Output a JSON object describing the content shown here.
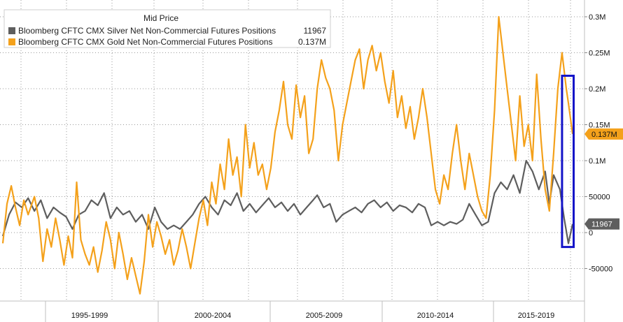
{
  "chart_data": {
    "type": "line",
    "legend": {
      "title": "Mid Price",
      "placement": "top-left",
      "entries": [
        {
          "series": 0,
          "label": "Bloomberg CFTC CMX Silver Net Non-Commercial Futures Positions",
          "value": "11967"
        },
        {
          "series": 1,
          "label": "Bloomberg CFTC CMX Gold Net Non-Commercial Futures Positions",
          "value": "0.137M"
        }
      ]
    },
    "x_ticks": [
      "1995-1999",
      "2000-2004",
      "2005-2009",
      "2010-2014",
      "2015-2019"
    ],
    "y_ticks": [
      {
        "value": -50000,
        "label": "-50000"
      },
      {
        "value": 0,
        "label": "0"
      },
      {
        "value": 50000,
        "label": "50000"
      },
      {
        "value": 100000,
        "label": "0.1M"
      },
      {
        "value": 150000,
        "label": "0.15M"
      },
      {
        "value": 200000,
        "label": "0.2M"
      },
      {
        "value": 250000,
        "label": "0.25M"
      },
      {
        "value": 300000,
        "label": "0.3M"
      }
    ],
    "ylim": [
      -95000,
      320000
    ],
    "xlim": [
      1993.0,
      2020.0
    ],
    "grid": true,
    "series": [
      {
        "color": "#5e5e5e",
        "last_label": "11967",
        "points": [
          [
            1993.0,
            -5000
          ],
          [
            1993.3,
            25000
          ],
          [
            1993.6,
            42000
          ],
          [
            1993.9,
            35000
          ],
          [
            1994.2,
            48000
          ],
          [
            1994.5,
            30000
          ],
          [
            1994.8,
            45000
          ],
          [
            1995.1,
            20000
          ],
          [
            1995.4,
            35000
          ],
          [
            1995.7,
            28000
          ],
          [
            1996.0,
            22000
          ],
          [
            1996.3,
            5000
          ],
          [
            1996.6,
            25000
          ],
          [
            1996.9,
            30000
          ],
          [
            1997.2,
            45000
          ],
          [
            1997.5,
            38000
          ],
          [
            1997.8,
            55000
          ],
          [
            1998.1,
            20000
          ],
          [
            1998.4,
            35000
          ],
          [
            1998.7,
            25000
          ],
          [
            1999.0,
            30000
          ],
          [
            1999.3,
            15000
          ],
          [
            1999.6,
            25000
          ],
          [
            1999.9,
            5000
          ],
          [
            2000.2,
            35000
          ],
          [
            2000.5,
            15000
          ],
          [
            2000.8,
            5000
          ],
          [
            2001.1,
            10000
          ],
          [
            2001.4,
            5000
          ],
          [
            2001.7,
            15000
          ],
          [
            2002.0,
            25000
          ],
          [
            2002.3,
            40000
          ],
          [
            2002.6,
            50000
          ],
          [
            2002.9,
            35000
          ],
          [
            2003.2,
            25000
          ],
          [
            2003.5,
            45000
          ],
          [
            2003.8,
            38000
          ],
          [
            2004.1,
            55000
          ],
          [
            2004.4,
            30000
          ],
          [
            2004.7,
            40000
          ],
          [
            2005.0,
            28000
          ],
          [
            2005.3,
            38000
          ],
          [
            2005.6,
            48000
          ],
          [
            2005.9,
            35000
          ],
          [
            2006.2,
            42000
          ],
          [
            2006.5,
            30000
          ],
          [
            2006.8,
            40000
          ],
          [
            2007.1,
            25000
          ],
          [
            2007.4,
            35000
          ],
          [
            2007.7,
            45000
          ],
          [
            2007.9,
            52000
          ],
          [
            2008.2,
            35000
          ],
          [
            2008.5,
            40000
          ],
          [
            2008.8,
            15000
          ],
          [
            2009.1,
            25000
          ],
          [
            2009.4,
            30000
          ],
          [
            2009.7,
            35000
          ],
          [
            2010.0,
            28000
          ],
          [
            2010.3,
            40000
          ],
          [
            2010.6,
            45000
          ],
          [
            2010.9,
            35000
          ],
          [
            2011.2,
            42000
          ],
          [
            2011.5,
            30000
          ],
          [
            2011.8,
            38000
          ],
          [
            2012.1,
            35000
          ],
          [
            2012.4,
            28000
          ],
          [
            2012.7,
            40000
          ],
          [
            2013.0,
            35000
          ],
          [
            2013.3,
            10000
          ],
          [
            2013.6,
            15000
          ],
          [
            2013.9,
            10000
          ],
          [
            2014.2,
            15000
          ],
          [
            2014.5,
            12000
          ],
          [
            2014.8,
            18000
          ],
          [
            2015.1,
            40000
          ],
          [
            2015.4,
            25000
          ],
          [
            2015.7,
            10000
          ],
          [
            2016.0,
            15000
          ],
          [
            2016.3,
            55000
          ],
          [
            2016.6,
            70000
          ],
          [
            2016.9,
            60000
          ],
          [
            2017.2,
            80000
          ],
          [
            2017.5,
            55000
          ],
          [
            2017.8,
            100000
          ],
          [
            2018.1,
            85000
          ],
          [
            2018.4,
            60000
          ],
          [
            2018.7,
            85000
          ],
          [
            2018.9,
            40000
          ],
          [
            2019.1,
            80000
          ],
          [
            2019.4,
            60000
          ],
          [
            2019.6,
            20000
          ],
          [
            2019.8,
            -15000
          ],
          [
            2020.0,
            11967
          ]
        ]
      },
      {
        "color": "#f4a11b",
        "last_label": "0.137M",
        "points": [
          [
            1993.0,
            -15000
          ],
          [
            1993.2,
            40000
          ],
          [
            1993.4,
            65000
          ],
          [
            1993.6,
            35000
          ],
          [
            1993.8,
            10000
          ],
          [
            1994.0,
            45000
          ],
          [
            1994.2,
            25000
          ],
          [
            1994.5,
            50000
          ],
          [
            1994.7,
            20000
          ],
          [
            1994.9,
            -40000
          ],
          [
            1995.1,
            5000
          ],
          [
            1995.3,
            -20000
          ],
          [
            1995.5,
            20000
          ],
          [
            1995.7,
            -10000
          ],
          [
            1995.9,
            -45000
          ],
          [
            1996.1,
            -5000
          ],
          [
            1996.3,
            -35000
          ],
          [
            1996.5,
            70000
          ],
          [
            1996.7,
            -10000
          ],
          [
            1996.9,
            -30000
          ],
          [
            1997.1,
            -45000
          ],
          [
            1997.3,
            -20000
          ],
          [
            1997.5,
            -55000
          ],
          [
            1997.7,
            -25000
          ],
          [
            1997.9,
            15000
          ],
          [
            1998.1,
            -10000
          ],
          [
            1998.3,
            -50000
          ],
          [
            1998.5,
            0
          ],
          [
            1998.7,
            -30000
          ],
          [
            1998.9,
            -65000
          ],
          [
            1999.1,
            -35000
          ],
          [
            1999.3,
            -60000
          ],
          [
            1999.5,
            -85000
          ],
          [
            1999.7,
            -40000
          ],
          [
            1999.9,
            25000
          ],
          [
            2000.1,
            -20000
          ],
          [
            2000.3,
            15000
          ],
          [
            2000.5,
            -5000
          ],
          [
            2000.7,
            -30000
          ],
          [
            2000.9,
            -10000
          ],
          [
            2001.1,
            -45000
          ],
          [
            2001.3,
            -25000
          ],
          [
            2001.5,
            5000
          ],
          [
            2001.7,
            -20000
          ],
          [
            2001.9,
            -50000
          ],
          [
            2002.1,
            -15000
          ],
          [
            2002.3,
            20000
          ],
          [
            2002.5,
            45000
          ],
          [
            2002.7,
            10000
          ],
          [
            2002.9,
            70000
          ],
          [
            2003.1,
            40000
          ],
          [
            2003.3,
            95000
          ],
          [
            2003.5,
            60000
          ],
          [
            2003.7,
            130000
          ],
          [
            2003.9,
            80000
          ],
          [
            2004.1,
            105000
          ],
          [
            2004.3,
            50000
          ],
          [
            2004.5,
            150000
          ],
          [
            2004.7,
            90000
          ],
          [
            2004.9,
            125000
          ],
          [
            2005.1,
            80000
          ],
          [
            2005.3,
            95000
          ],
          [
            2005.5,
            60000
          ],
          [
            2005.7,
            90000
          ],
          [
            2005.9,
            140000
          ],
          [
            2006.1,
            170000
          ],
          [
            2006.3,
            210000
          ],
          [
            2006.5,
            150000
          ],
          [
            2006.7,
            130000
          ],
          [
            2006.9,
            205000
          ],
          [
            2007.1,
            160000
          ],
          [
            2007.3,
            190000
          ],
          [
            2007.5,
            110000
          ],
          [
            2007.7,
            130000
          ],
          [
            2007.9,
            200000
          ],
          [
            2008.1,
            240000
          ],
          [
            2008.3,
            215000
          ],
          [
            2008.5,
            200000
          ],
          [
            2008.7,
            170000
          ],
          [
            2008.9,
            100000
          ],
          [
            2009.1,
            150000
          ],
          [
            2009.3,
            180000
          ],
          [
            2009.5,
            210000
          ],
          [
            2009.7,
            240000
          ],
          [
            2009.9,
            255000
          ],
          [
            2010.1,
            200000
          ],
          [
            2010.3,
            240000
          ],
          [
            2010.5,
            260000
          ],
          [
            2010.7,
            225000
          ],
          [
            2010.9,
            250000
          ],
          [
            2011.1,
            210000
          ],
          [
            2011.3,
            180000
          ],
          [
            2011.5,
            225000
          ],
          [
            2011.7,
            160000
          ],
          [
            2011.9,
            190000
          ],
          [
            2012.1,
            145000
          ],
          [
            2012.3,
            175000
          ],
          [
            2012.5,
            130000
          ],
          [
            2012.7,
            160000
          ],
          [
            2012.9,
            200000
          ],
          [
            2013.1,
            160000
          ],
          [
            2013.3,
            110000
          ],
          [
            2013.5,
            60000
          ],
          [
            2013.7,
            40000
          ],
          [
            2013.9,
            80000
          ],
          [
            2014.1,
            60000
          ],
          [
            2014.3,
            110000
          ],
          [
            2014.5,
            150000
          ],
          [
            2014.7,
            100000
          ],
          [
            2014.9,
            60000
          ],
          [
            2015.1,
            110000
          ],
          [
            2015.3,
            80000
          ],
          [
            2015.5,
            50000
          ],
          [
            2015.7,
            30000
          ],
          [
            2015.9,
            20000
          ],
          [
            2016.1,
            80000
          ],
          [
            2016.3,
            170000
          ],
          [
            2016.5,
            300000
          ],
          [
            2016.7,
            250000
          ],
          [
            2016.9,
            200000
          ],
          [
            2017.1,
            150000
          ],
          [
            2017.3,
            100000
          ],
          [
            2017.5,
            190000
          ],
          [
            2017.7,
            120000
          ],
          [
            2017.9,
            150000
          ],
          [
            2018.1,
            100000
          ],
          [
            2018.3,
            220000
          ],
          [
            2018.5,
            130000
          ],
          [
            2018.7,
            60000
          ],
          [
            2018.9,
            30000
          ],
          [
            2019.1,
            110000
          ],
          [
            2019.3,
            200000
          ],
          [
            2019.5,
            250000
          ],
          [
            2019.7,
            200000
          ],
          [
            2019.8,
            180000
          ],
          [
            2020.0,
            137000
          ]
        ]
      }
    ],
    "highlight_box": {
      "x_from": 2019.5,
      "x_to": 2020.05,
      "y_from": -20000,
      "y_to": 218000,
      "color": "#1414c8"
    }
  }
}
